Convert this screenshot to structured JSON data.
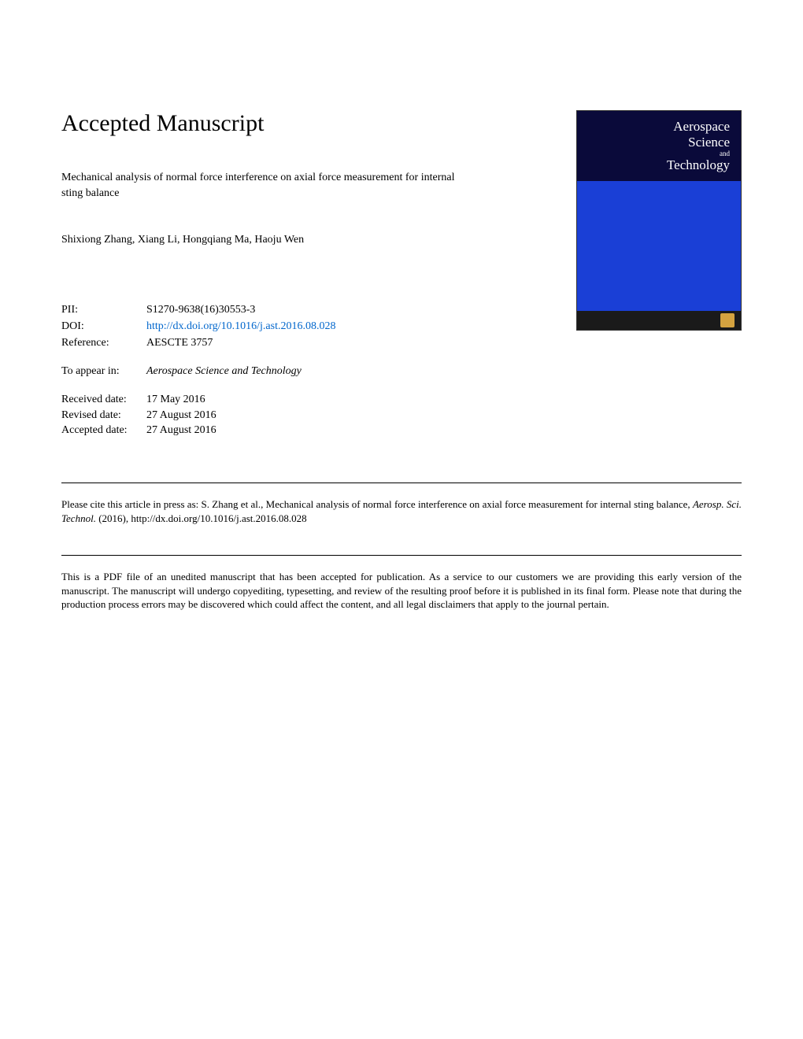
{
  "header": {
    "main_title": "Accepted Manuscript",
    "article_title": "Mechanical analysis of normal force interference on axial force measurement for internal sting balance",
    "authors": "Shixiong Zhang, Xiang Li, Hongqiang Ma, Haoju Wen"
  },
  "journal_cover": {
    "line1": "Aerospace",
    "line2": "Science",
    "and": "and",
    "line3": "Technology",
    "header_bg": "#0a0a3a",
    "body_bg": "#1a3fd6",
    "footer_bg": "#1a1a1a",
    "logo_bg": "#d4a340"
  },
  "metadata": {
    "pii_label": "PII:",
    "pii_value": "S1270-9638(16)30553-3",
    "doi_label": "DOI:",
    "doi_value": "http://dx.doi.org/10.1016/j.ast.2016.08.028",
    "ref_label": "Reference:",
    "ref_value": "AESCTE 3757"
  },
  "appear": {
    "label": "To appear in:",
    "value": "Aerospace Science and Technology"
  },
  "dates": {
    "received_label": "Received date:",
    "received_value": "17 May 2016",
    "revised_label": "Revised date:",
    "revised_value": "27 August 2016",
    "accepted_label": "Accepted date:",
    "accepted_value": "27 August 2016"
  },
  "citation": {
    "prefix": "Please cite this article in press as: S. Zhang et al., Mechanical analysis of normal force interference on axial force measurement for internal sting balance, ",
    "journal_italic": "Aerosp. Sci. Technol.",
    "suffix": " (2016), http://dx.doi.org/10.1016/j.ast.2016.08.028"
  },
  "disclaimer": "This is a PDF file of an unedited manuscript that has been accepted for publication. As a service to our customers we are providing this early version of the manuscript. The manuscript will undergo copyediting, typesetting, and review of the resulting proof before it is published in its final form. Please note that during the production process errors may be discovered which could affect the content, and all legal disclaimers that apply to the journal pertain.",
  "colors": {
    "text": "#000000",
    "link": "#0066cc",
    "background": "#ffffff",
    "divider": "#000000"
  },
  "typography": {
    "main_title_size": 30,
    "body_size": 14,
    "fine_print_size": 13,
    "font_family": "Times New Roman"
  }
}
